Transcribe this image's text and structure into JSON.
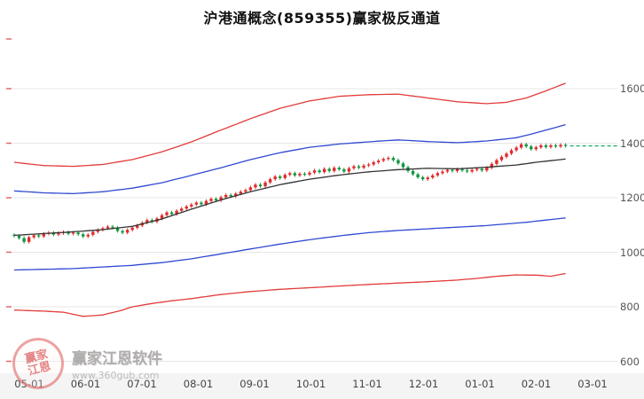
{
  "title": "沪港通概念(859355)赢家极反通道",
  "watermark": {
    "brand": "赢家江恩软件",
    "url": "www.360gub.com",
    "logo_line1": "赢家",
    "logo_line2": "江恩"
  },
  "chart_data": {
    "type": "candlestick",
    "title": "沪港通概念(859355)赢家极反通道",
    "x_tick_labels": [
      "05-01",
      "06-01",
      "07-01",
      "08-01",
      "09-01",
      "10-01",
      "11-01",
      "12-01",
      "01-01",
      "02-01",
      "03-01"
    ],
    "y_tick_values": [
      600,
      800,
      1000,
      1200,
      1400,
      1600
    ],
    "ylim": [
      560,
      1790
    ],
    "grid": "horizontal",
    "legend": "none",
    "candle_shadow": 6,
    "colors": {
      "up": "#e02a2a",
      "down": "#0f9640",
      "channel_outer": "#e23b3b",
      "channel_inner": "#2f49d1",
      "channel_mid": "#333333",
      "last_price": "#00a651",
      "grid": "#e7e7e7",
      "left_tick": "#e06a6a",
      "axis_text": "#555555"
    },
    "candles": [
      [
        1064,
        1060
      ],
      [
        1060,
        1052
      ],
      [
        1052,
        1038
      ],
      [
        1038,
        1055
      ],
      [
        1055,
        1062
      ],
      [
        1062,
        1058
      ],
      [
        1058,
        1068
      ],
      [
        1068,
        1072
      ],
      [
        1072,
        1065
      ],
      [
        1065,
        1070
      ],
      [
        1070,
        1074
      ],
      [
        1074,
        1068
      ],
      [
        1068,
        1072
      ],
      [
        1072,
        1066
      ],
      [
        1066,
        1058
      ],
      [
        1058,
        1064
      ],
      [
        1064,
        1075
      ],
      [
        1075,
        1082
      ],
      [
        1082,
        1088
      ],
      [
        1088,
        1094
      ],
      [
        1094,
        1090
      ],
      [
        1090,
        1078
      ],
      [
        1078,
        1072
      ],
      [
        1072,
        1082
      ],
      [
        1082,
        1090
      ],
      [
        1090,
        1098
      ],
      [
        1098,
        1108
      ],
      [
        1108,
        1118
      ],
      [
        1118,
        1112
      ],
      [
        1112,
        1124
      ],
      [
        1124,
        1136
      ],
      [
        1136,
        1146
      ],
      [
        1146,
        1140
      ],
      [
        1140,
        1152
      ],
      [
        1152,
        1160
      ],
      [
        1160,
        1168
      ],
      [
        1168,
        1175
      ],
      [
        1175,
        1182
      ],
      [
        1182,
        1176
      ],
      [
        1176,
        1188
      ],
      [
        1188,
        1196
      ],
      [
        1196,
        1190
      ],
      [
        1190,
        1202
      ],
      [
        1202,
        1210
      ],
      [
        1210,
        1205
      ],
      [
        1205,
        1215
      ],
      [
        1215,
        1222
      ],
      [
        1222,
        1228
      ],
      [
        1228,
        1238
      ],
      [
        1238,
        1248
      ],
      [
        1248,
        1242
      ],
      [
        1242,
        1256
      ],
      [
        1256,
        1268
      ],
      [
        1268,
        1278
      ],
      [
        1278,
        1272
      ],
      [
        1272,
        1284
      ],
      [
        1284,
        1290
      ],
      [
        1290,
        1282
      ],
      [
        1282,
        1288
      ],
      [
        1288,
        1285
      ],
      [
        1285,
        1292
      ],
      [
        1292,
        1300
      ],
      [
        1300,
        1294
      ],
      [
        1294,
        1306
      ],
      [
        1306,
        1298
      ],
      [
        1298,
        1310
      ],
      [
        1310,
        1304
      ],
      [
        1304,
        1296
      ],
      [
        1296,
        1308
      ],
      [
        1308,
        1315
      ],
      [
        1315,
        1310
      ],
      [
        1310,
        1318
      ],
      [
        1318,
        1322
      ],
      [
        1322,
        1330
      ],
      [
        1330,
        1336
      ],
      [
        1336,
        1342
      ],
      [
        1342,
        1346
      ],
      [
        1346,
        1338
      ],
      [
        1338,
        1326
      ],
      [
        1326,
        1312
      ],
      [
        1312,
        1298
      ],
      [
        1298,
        1286
      ],
      [
        1286,
        1275
      ],
      [
        1275,
        1268
      ],
      [
        1268,
        1274
      ],
      [
        1274,
        1282
      ],
      [
        1282,
        1290
      ],
      [
        1290,
        1296
      ],
      [
        1296,
        1302
      ],
      [
        1302,
        1298
      ],
      [
        1298,
        1305
      ],
      [
        1305,
        1300
      ],
      [
        1300,
        1296
      ],
      [
        1296,
        1302
      ],
      [
        1302,
        1306
      ],
      [
        1306,
        1300
      ],
      [
        1300,
        1310
      ],
      [
        1310,
        1324
      ],
      [
        1324,
        1338
      ],
      [
        1338,
        1350
      ],
      [
        1350,
        1362
      ],
      [
        1362,
        1374
      ],
      [
        1374,
        1384
      ],
      [
        1384,
        1396
      ],
      [
        1396,
        1388
      ],
      [
        1388,
        1378
      ],
      [
        1378,
        1385
      ],
      [
        1385,
        1392
      ],
      [
        1392,
        1386
      ],
      [
        1386,
        1392
      ],
      [
        1392,
        1388
      ],
      [
        1388,
        1394
      ],
      [
        1394,
        1390
      ]
    ],
    "channel_lines": [
      {
        "name": "upper-red",
        "color_key": "channel_outer",
        "points": [
          [
            0,
            1330
          ],
          [
            6,
            1318
          ],
          [
            12,
            1315
          ],
          [
            18,
            1322
          ],
          [
            24,
            1340
          ],
          [
            30,
            1368
          ],
          [
            36,
            1405
          ],
          [
            42,
            1448
          ],
          [
            48,
            1490
          ],
          [
            54,
            1528
          ],
          [
            60,
            1555
          ],
          [
            66,
            1572
          ],
          [
            72,
            1578
          ],
          [
            78,
            1580
          ],
          [
            84,
            1566
          ],
          [
            90,
            1552
          ],
          [
            96,
            1545
          ],
          [
            100,
            1550
          ],
          [
            104,
            1566
          ],
          [
            108,
            1592
          ],
          [
            112,
            1620
          ]
        ]
      },
      {
        "name": "upper-blue",
        "color_key": "channel_inner",
        "points": [
          [
            0,
            1225
          ],
          [
            6,
            1218
          ],
          [
            12,
            1215
          ],
          [
            18,
            1222
          ],
          [
            24,
            1235
          ],
          [
            30,
            1255
          ],
          [
            36,
            1282
          ],
          [
            42,
            1310
          ],
          [
            48,
            1340
          ],
          [
            54,
            1365
          ],
          [
            60,
            1385
          ],
          [
            66,
            1397
          ],
          [
            72,
            1405
          ],
          [
            78,
            1412
          ],
          [
            84,
            1406
          ],
          [
            90,
            1402
          ],
          [
            96,
            1408
          ],
          [
            102,
            1420
          ],
          [
            106,
            1438
          ],
          [
            112,
            1468
          ]
        ]
      },
      {
        "name": "middle-black",
        "color_key": "channel_mid",
        "points": [
          [
            0,
            1062
          ],
          [
            12,
            1075
          ],
          [
            18,
            1083
          ],
          [
            24,
            1095
          ],
          [
            30,
            1122
          ],
          [
            36,
            1158
          ],
          [
            42,
            1192
          ],
          [
            48,
            1222
          ],
          [
            54,
            1248
          ],
          [
            60,
            1268
          ],
          [
            66,
            1283
          ],
          [
            72,
            1295
          ],
          [
            78,
            1303
          ],
          [
            84,
            1308
          ],
          [
            90,
            1306
          ],
          [
            96,
            1312
          ],
          [
            102,
            1320
          ],
          [
            106,
            1330
          ],
          [
            112,
            1342
          ]
        ]
      },
      {
        "name": "lower-blue",
        "color_key": "channel_inner",
        "points": [
          [
            0,
            935
          ],
          [
            12,
            940
          ],
          [
            24,
            952
          ],
          [
            30,
            962
          ],
          [
            36,
            976
          ],
          [
            42,
            994
          ],
          [
            48,
            1012
          ],
          [
            54,
            1030
          ],
          [
            60,
            1046
          ],
          [
            66,
            1060
          ],
          [
            72,
            1072
          ],
          [
            78,
            1080
          ],
          [
            84,
            1086
          ],
          [
            90,
            1092
          ],
          [
            96,
            1098
          ],
          [
            104,
            1110
          ],
          [
            112,
            1126
          ]
        ]
      },
      {
        "name": "lower-red",
        "color_key": "channel_outer",
        "points": [
          [
            0,
            788
          ],
          [
            6,
            784
          ],
          [
            10,
            780
          ],
          [
            14,
            765
          ],
          [
            18,
            770
          ],
          [
            22,
            788
          ],
          [
            24,
            800
          ],
          [
            28,
            812
          ],
          [
            32,
            822
          ],
          [
            36,
            830
          ],
          [
            42,
            845
          ],
          [
            48,
            856
          ],
          [
            54,
            864
          ],
          [
            60,
            870
          ],
          [
            66,
            876
          ],
          [
            72,
            882
          ],
          [
            78,
            887
          ],
          [
            84,
            892
          ],
          [
            90,
            898
          ],
          [
            94,
            904
          ],
          [
            98,
            912
          ],
          [
            102,
            917
          ],
          [
            106,
            916
          ],
          [
            109,
            912
          ],
          [
            112,
            922
          ]
        ]
      }
    ],
    "last_price_line": {
      "value": 1390,
      "style": "dashed"
    }
  }
}
